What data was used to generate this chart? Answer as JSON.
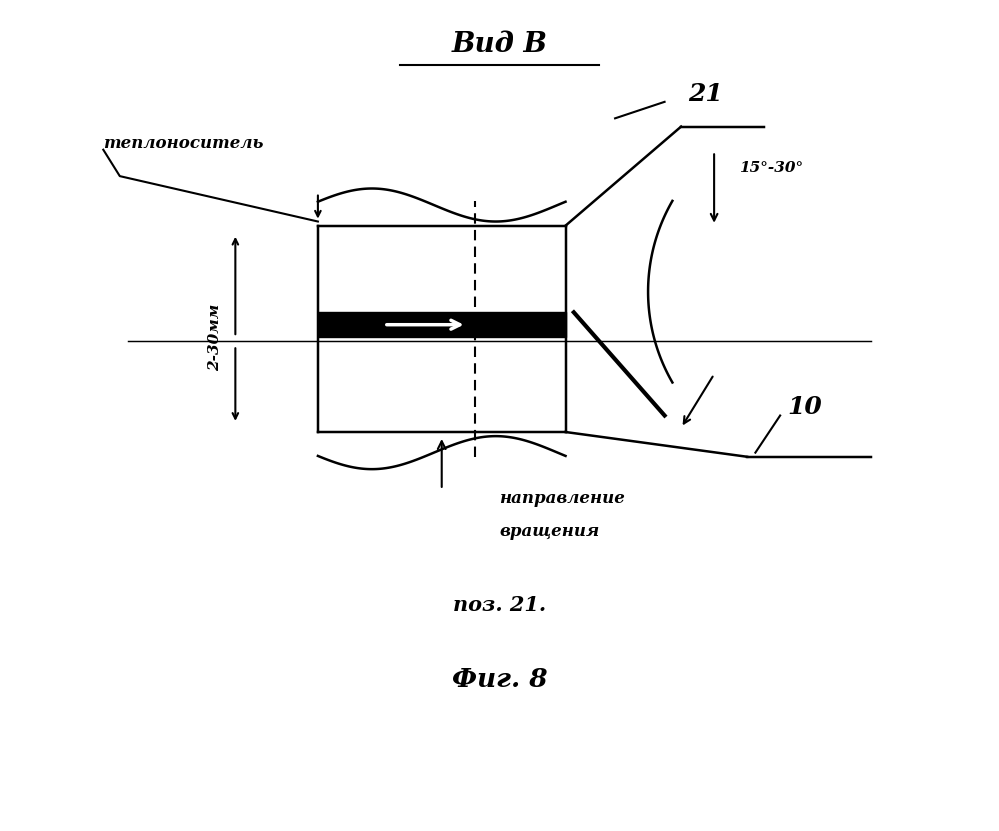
{
  "title": "Вид В",
  "fig_label": "Фиг. 8",
  "pos_label": "поз. 21.",
  "label_21": "21",
  "label_10": "10",
  "label_angle": "15°-30°",
  "label_teplonos": "теплоноситель",
  "label_dimension": "2-30мм",
  "label_napravlenie1": "направление",
  "label_napravlenie2": "вращения",
  "bg_color": "#ffffff",
  "line_color": "#000000"
}
